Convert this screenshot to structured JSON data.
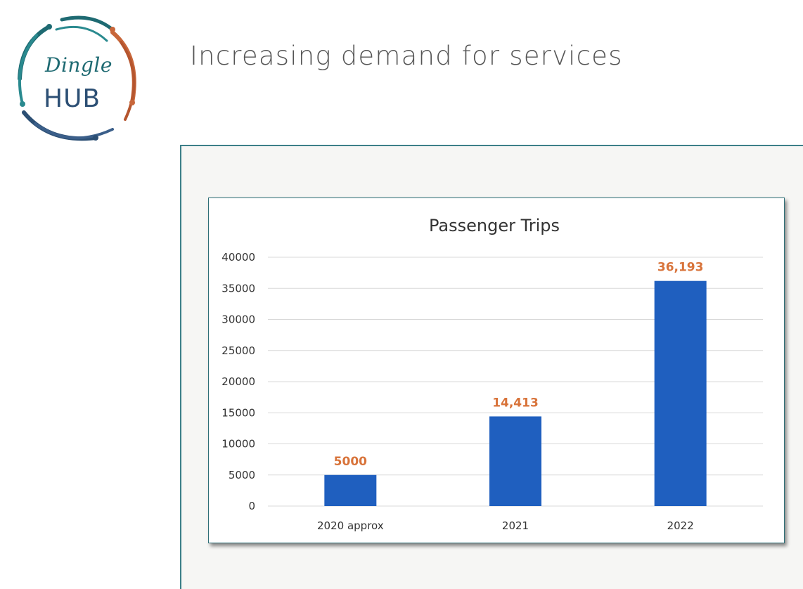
{
  "logo": {
    "script_text": "Dingle",
    "main_text": "HUB",
    "colors": {
      "teal": "#1e6a72",
      "navy": "#2c4f74",
      "orange": "#c8663a"
    }
  },
  "slide": {
    "title": "Increasing demand for services"
  },
  "chart_data": {
    "type": "bar",
    "title": "Passenger Trips",
    "xlabel": "",
    "ylabel": "",
    "categories": [
      "2020 approx",
      "2021",
      "2022"
    ],
    "values": [
      5000,
      14413,
      36193
    ],
    "data_labels": [
      "5000",
      "14,413",
      "36,193"
    ],
    "ylim": [
      0,
      40000
    ],
    "yticks": [
      0,
      5000,
      10000,
      15000,
      20000,
      25000,
      30000,
      35000,
      40000
    ],
    "ytick_labels": [
      "0",
      "5000",
      "10000",
      "15000",
      "20000",
      "25000",
      "30000",
      "35000",
      "40000"
    ],
    "grid": true,
    "legend": "none",
    "colors": {
      "bar": "#1f5fbf",
      "data_label": "#d8733a",
      "grid": "#d9d9d9"
    }
  }
}
